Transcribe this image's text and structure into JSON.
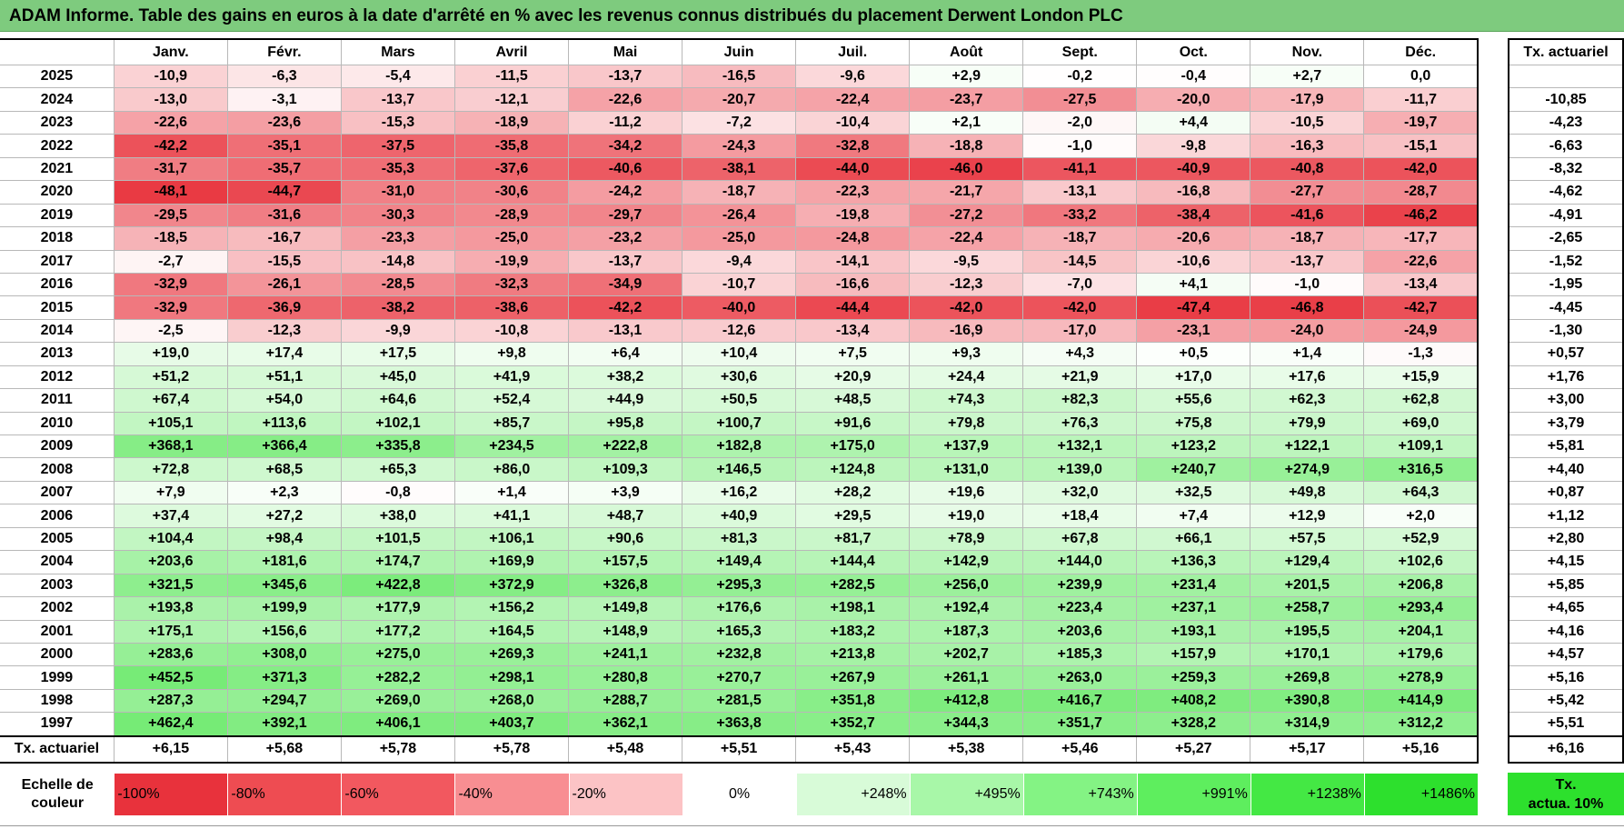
{
  "title": "ADAM Informe. Table des gains en euros à la date d'arrêté en % avec les revenus connus distribués du placement Derwent London PLC",
  "months": [
    "Janv.",
    "Févr.",
    "Mars",
    "Avril",
    "Mai",
    "Juin",
    "Juil.",
    "Août",
    "Sept.",
    "Oct.",
    "Nov.",
    "Déc."
  ],
  "side_header": "Tx. actuariel",
  "rows": [
    {
      "year": "2025",
      "values": [
        "-10,9",
        "-6,3",
        "-5,4",
        "-11,5",
        "-13,7",
        "-16,5",
        "-9,6",
        "+2,9",
        "-0,2",
        "-0,4",
        "+2,7",
        "0,0"
      ],
      "tx": ""
    },
    {
      "year": "2024",
      "values": [
        "-13,0",
        "-3,1",
        "-13,7",
        "-12,1",
        "-22,6",
        "-20,7",
        "-22,4",
        "-23,7",
        "-27,5",
        "-20,0",
        "-17,9",
        "-11,7"
      ],
      "tx": "-10,85"
    },
    {
      "year": "2023",
      "values": [
        "-22,6",
        "-23,6",
        "-15,3",
        "-18,9",
        "-11,2",
        "-7,2",
        "-10,4",
        "+2,1",
        "-2,0",
        "+4,4",
        "-10,5",
        "-19,7"
      ],
      "tx": "-4,23"
    },
    {
      "year": "2022",
      "values": [
        "-42,2",
        "-35,1",
        "-37,5",
        "-35,8",
        "-34,2",
        "-24,3",
        "-32,8",
        "-18,8",
        "-1,0",
        "-9,8",
        "-16,3",
        "-15,1"
      ],
      "tx": "-6,63"
    },
    {
      "year": "2021",
      "values": [
        "-31,7",
        "-35,7",
        "-35,3",
        "-37,6",
        "-40,6",
        "-38,1",
        "-44,0",
        "-46,0",
        "-41,1",
        "-40,9",
        "-40,8",
        "-42,0"
      ],
      "tx": "-8,32"
    },
    {
      "year": "2020",
      "values": [
        "-48,1",
        "-44,7",
        "-31,0",
        "-30,6",
        "-24,2",
        "-18,7",
        "-22,3",
        "-21,7",
        "-13,1",
        "-16,8",
        "-27,7",
        "-28,7"
      ],
      "tx": "-4,62"
    },
    {
      "year": "2019",
      "values": [
        "-29,5",
        "-31,6",
        "-30,3",
        "-28,9",
        "-29,7",
        "-26,4",
        "-19,8",
        "-27,2",
        "-33,2",
        "-38,4",
        "-41,6",
        "-46,2"
      ],
      "tx": "-4,91"
    },
    {
      "year": "2018",
      "values": [
        "-18,5",
        "-16,7",
        "-23,3",
        "-25,0",
        "-23,2",
        "-25,0",
        "-24,8",
        "-22,4",
        "-18,7",
        "-20,6",
        "-18,7",
        "-17,7"
      ],
      "tx": "-2,65"
    },
    {
      "year": "2017",
      "values": [
        "-2,7",
        "-15,5",
        "-14,8",
        "-19,9",
        "-13,7",
        "-9,4",
        "-14,1",
        "-9,5",
        "-14,5",
        "-10,6",
        "-13,7",
        "-22,6"
      ],
      "tx": "-1,52"
    },
    {
      "year": "2016",
      "values": [
        "-32,9",
        "-26,1",
        "-28,5",
        "-32,3",
        "-34,9",
        "-10,7",
        "-16,6",
        "-12,3",
        "-7,0",
        "+4,1",
        "-1,0",
        "-13,4"
      ],
      "tx": "-1,95"
    },
    {
      "year": "2015",
      "values": [
        "-32,9",
        "-36,9",
        "-38,2",
        "-38,6",
        "-42,2",
        "-40,0",
        "-44,4",
        "-42,0",
        "-42,0",
        "-47,4",
        "-46,8",
        "-42,7"
      ],
      "tx": "-4,45"
    },
    {
      "year": "2014",
      "values": [
        "-2,5",
        "-12,3",
        "-9,9",
        "-10,8",
        "-13,1",
        "-12,6",
        "-13,4",
        "-16,9",
        "-17,0",
        "-23,1",
        "-24,0",
        "-24,9"
      ],
      "tx": "-1,30"
    },
    {
      "year": "2013",
      "values": [
        "+19,0",
        "+17,4",
        "+17,5",
        "+9,8",
        "+6,4",
        "+10,4",
        "+7,5",
        "+9,3",
        "+4,3",
        "+0,5",
        "+1,4",
        "-1,3"
      ],
      "tx": "+0,57"
    },
    {
      "year": "2012",
      "values": [
        "+51,2",
        "+51,1",
        "+45,0",
        "+41,9",
        "+38,2",
        "+30,6",
        "+20,9",
        "+24,4",
        "+21,9",
        "+17,0",
        "+17,6",
        "+15,9"
      ],
      "tx": "+1,76"
    },
    {
      "year": "2011",
      "values": [
        "+67,4",
        "+54,0",
        "+64,6",
        "+52,4",
        "+44,9",
        "+50,5",
        "+48,5",
        "+74,3",
        "+82,3",
        "+55,6",
        "+62,3",
        "+62,8"
      ],
      "tx": "+3,00"
    },
    {
      "year": "2010",
      "values": [
        "+105,1",
        "+113,6",
        "+102,1",
        "+85,7",
        "+95,8",
        "+100,7",
        "+91,6",
        "+79,8",
        "+76,3",
        "+75,8",
        "+79,9",
        "+69,0"
      ],
      "tx": "+3,79"
    },
    {
      "year": "2009",
      "values": [
        "+368,1",
        "+366,4",
        "+335,8",
        "+234,5",
        "+222,8",
        "+182,8",
        "+175,0",
        "+137,9",
        "+132,1",
        "+123,2",
        "+122,1",
        "+109,1"
      ],
      "tx": "+5,81"
    },
    {
      "year": "2008",
      "values": [
        "+72,8",
        "+68,5",
        "+65,3",
        "+86,0",
        "+109,3",
        "+146,5",
        "+124,8",
        "+131,0",
        "+139,0",
        "+240,7",
        "+274,9",
        "+316,5"
      ],
      "tx": "+4,40"
    },
    {
      "year": "2007",
      "values": [
        "+7,9",
        "+2,3",
        "-0,8",
        "+1,4",
        "+3,9",
        "+16,2",
        "+28,2",
        "+19,6",
        "+32,0",
        "+32,5",
        "+49,8",
        "+64,3"
      ],
      "tx": "+0,87"
    },
    {
      "year": "2006",
      "values": [
        "+37,4",
        "+27,2",
        "+38,0",
        "+41,1",
        "+48,7",
        "+40,9",
        "+29,5",
        "+19,0",
        "+18,4",
        "+7,4",
        "+12,9",
        "+2,0"
      ],
      "tx": "+1,12"
    },
    {
      "year": "2005",
      "values": [
        "+104,4",
        "+98,4",
        "+101,5",
        "+106,1",
        "+90,6",
        "+81,3",
        "+81,7",
        "+78,9",
        "+67,8",
        "+66,1",
        "+57,5",
        "+52,9"
      ],
      "tx": "+2,80"
    },
    {
      "year": "2004",
      "values": [
        "+203,6",
        "+181,6",
        "+174,7",
        "+169,9",
        "+157,5",
        "+149,4",
        "+144,4",
        "+142,9",
        "+144,0",
        "+136,3",
        "+129,4",
        "+102,6"
      ],
      "tx": "+4,15"
    },
    {
      "year": "2003",
      "values": [
        "+321,5",
        "+345,6",
        "+422,8",
        "+372,9",
        "+326,8",
        "+295,3",
        "+282,5",
        "+256,0",
        "+239,9",
        "+231,4",
        "+201,5",
        "+206,8"
      ],
      "tx": "+5,85"
    },
    {
      "year": "2002",
      "values": [
        "+193,8",
        "+199,9",
        "+177,9",
        "+156,2",
        "+149,8",
        "+176,6",
        "+198,1",
        "+192,4",
        "+223,4",
        "+237,1",
        "+258,7",
        "+293,4"
      ],
      "tx": "+4,65"
    },
    {
      "year": "2001",
      "values": [
        "+175,1",
        "+156,6",
        "+177,2",
        "+164,5",
        "+148,9",
        "+165,3",
        "+183,2",
        "+187,3",
        "+203,6",
        "+193,1",
        "+195,5",
        "+204,1"
      ],
      "tx": "+4,16"
    },
    {
      "year": "2000",
      "values": [
        "+283,6",
        "+308,0",
        "+275,0",
        "+269,3",
        "+241,1",
        "+232,8",
        "+213,8",
        "+202,7",
        "+185,3",
        "+157,9",
        "+170,1",
        "+179,6"
      ],
      "tx": "+4,57"
    },
    {
      "year": "1999",
      "values": [
        "+452,5",
        "+371,3",
        "+282,2",
        "+298,1",
        "+280,8",
        "+270,7",
        "+267,9",
        "+261,1",
        "+263,0",
        "+259,3",
        "+269,8",
        "+278,9"
      ],
      "tx": "+5,16"
    },
    {
      "year": "1998",
      "values": [
        "+287,3",
        "+294,7",
        "+269,0",
        "+268,0",
        "+288,7",
        "+281,5",
        "+351,8",
        "+412,8",
        "+416,7",
        "+408,2",
        "+390,8",
        "+414,9"
      ],
      "tx": "+5,42"
    },
    {
      "year": "1997",
      "values": [
        "+462,4",
        "+392,1",
        "+406,1",
        "+403,7",
        "+362,1",
        "+363,8",
        "+352,7",
        "+344,3",
        "+351,7",
        "+328,2",
        "+314,9",
        "+312,2"
      ],
      "tx": "+5,51"
    }
  ],
  "avg_row": {
    "label": "Tx. actuariel",
    "values": [
      "+6,15",
      "+5,68",
      "+5,78",
      "+5,78",
      "+5,48",
      "+5,51",
      "+5,43",
      "+5,38",
      "+5,46",
      "+5,27",
      "+5,17",
      "+5,16"
    ],
    "tx": "+6,16"
  },
  "scale": {
    "label": "Echelle de couleur",
    "items": [
      {
        "text": "-100%",
        "color": "#e8323c",
        "kind": "neg"
      },
      {
        "text": "-80%",
        "color": "#ee4c52",
        "kind": "neg"
      },
      {
        "text": "-60%",
        "color": "#f2585f",
        "kind": "neg"
      },
      {
        "text": "-40%",
        "color": "#f88e92",
        "kind": "neg"
      },
      {
        "text": "-20%",
        "color": "#fcc3c5",
        "kind": "neg"
      },
      {
        "text": "0%",
        "color": "#ffffff",
        "kind": "zero"
      },
      {
        "text": "+248%",
        "color": "#d8fbd8",
        "kind": "pos"
      },
      {
        "text": "+495%",
        "color": "#a8f7a8",
        "kind": "pos"
      },
      {
        "text": "+743%",
        "color": "#84f384",
        "kind": "pos"
      },
      {
        "text": "+991%",
        "color": "#5eee5e",
        "kind": "pos"
      },
      {
        "text": "+1238%",
        "color": "#44e844",
        "kind": "pos"
      },
      {
        "text": "+1486%",
        "color": "#2de02d",
        "kind": "pos"
      }
    ],
    "tx_label_line1": "Tx.",
    "tx_label_line2": "actua. 10%",
    "tx_color": "#2de02d"
  }
}
